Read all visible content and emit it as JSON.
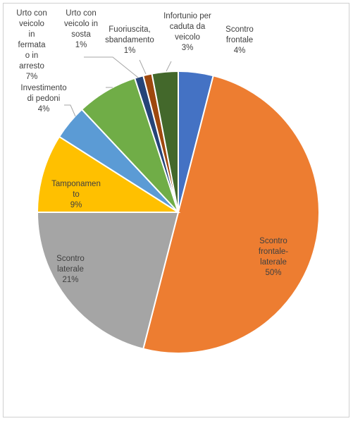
{
  "chart_data": {
    "type": "pie",
    "title": "",
    "slices": [
      {
        "label": "Scontro frontale",
        "value": 4,
        "percent_label": "4%",
        "color": "#4472C4"
      },
      {
        "label": "Scontro frontale-laterale",
        "value": 50,
        "percent_label": "50%",
        "color": "#ED7D31"
      },
      {
        "label": "Scontro laterale",
        "value": 21,
        "percent_label": "21%",
        "color": "#A5A5A5"
      },
      {
        "label": "Tamponamento",
        "value": 9,
        "percent_label": "9%",
        "color": "#FFC000"
      },
      {
        "label": "Investimento di pedoni",
        "value": 4,
        "percent_label": "4%",
        "color": "#5B9BD5"
      },
      {
        "label": "Urto con veicolo in fermata o in arresto",
        "value": 7,
        "percent_label": "7%",
        "color": "#70AD47"
      },
      {
        "label": "Urto con veicolo in sosta",
        "value": 1,
        "percent_label": "1%",
        "color": "#264478"
      },
      {
        "label": "Fuoriuscita, sbandamento",
        "value": 1,
        "percent_label": "1%",
        "color": "#9E480E"
      },
      {
        "label": "Infortunio per caduta da veicolo",
        "value": 3,
        "percent_label": "3%",
        "color": "#43682B"
      }
    ],
    "labels": [
      {
        "lines": [
          "Scontro",
          "frontale",
          "4%"
        ]
      },
      {
        "lines": [
          "Scontro",
          "frontale-",
          "laterale",
          "50%"
        ]
      },
      {
        "lines": [
          "Scontro",
          "laterale",
          "21%"
        ]
      },
      {
        "lines": [
          "Tamponamen",
          "to",
          "9%"
        ]
      },
      {
        "lines": [
          "Investimento",
          "di pedoni",
          "4%"
        ]
      },
      {
        "lines": [
          "Urto con",
          "veicolo",
          "in",
          "fermata",
          "o in",
          "arresto",
          "7%"
        ]
      },
      {
        "lines": [
          "Urto con",
          "veicolo in",
          "sosta",
          "1%"
        ]
      },
      {
        "lines": [
          "Fuoriuscita,",
          "sbandamento",
          "1%"
        ]
      },
      {
        "lines": [
          "Infortunio per",
          "caduta da",
          "veicolo",
          "3%"
        ]
      }
    ],
    "legend": "none"
  }
}
